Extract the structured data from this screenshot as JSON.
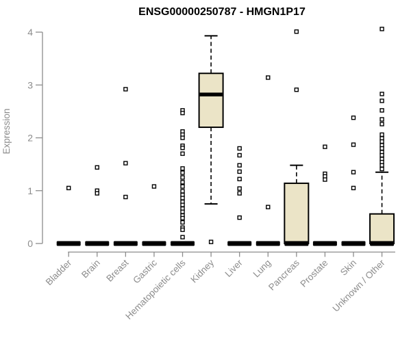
{
  "chart_data": {
    "type": "boxplot",
    "title": "ENSG00000250787 - HMGN1P17",
    "ylabel": "Expression",
    "xlabel": "",
    "ylim": [
      0,
      4
    ],
    "yticks": [
      0,
      1,
      2,
      3,
      4
    ],
    "grid": false,
    "legend": false,
    "colors": {
      "box_fill": "#ebe4c7",
      "box_border": "#000000",
      "median": "#000000",
      "whisker": "#000000",
      "outlier_fill": "#ffffff",
      "axis": "#8c8c8c",
      "label": "#8c8c8c",
      "title": "#000000",
      "background": "#ffffff"
    },
    "categories": [
      "Bladder",
      "Brain",
      "Breast",
      "Gastric",
      "Hematopoietic cells",
      "Kidney",
      "Liver",
      "Lung",
      "Pancreas",
      "Prostate",
      "Skin",
      "Unknown / Other"
    ],
    "series": [
      {
        "category": "Bladder",
        "low": 0,
        "q1": 0,
        "median": 0,
        "q3": 0,
        "high": 0,
        "outliers": [
          1.05
        ]
      },
      {
        "category": "Brain",
        "low": 0,
        "q1": 0,
        "median": 0,
        "q3": 0,
        "high": 0,
        "outliers": [
          1.44,
          1.0,
          0.95
        ]
      },
      {
        "category": "Breast",
        "low": 0,
        "q1": 0,
        "median": 0,
        "q3": 0,
        "high": 0,
        "outliers": [
          2.92,
          1.52,
          0.88
        ]
      },
      {
        "category": "Gastric",
        "low": 0,
        "q1": 0,
        "median": 0,
        "q3": 0,
        "high": 0,
        "outliers": [
          1.08
        ]
      },
      {
        "category": "Hematopoietic cells",
        "low": 0,
        "q1": 0,
        "median": 0,
        "q3": 0,
        "high": 0,
        "outliers": [
          2.52,
          2.47,
          2.12,
          2.06,
          2.0,
          1.85,
          1.81,
          1.7,
          1.42,
          1.34,
          1.25,
          1.16,
          1.08,
          0.99,
          0.92,
          0.86,
          0.79,
          0.73,
          0.66,
          0.6,
          0.53,
          0.48,
          0.4,
          0.3,
          0.26,
          0.12
        ]
      },
      {
        "category": "Kidney",
        "low": 0.75,
        "q1": 2.2,
        "median": 2.82,
        "q3": 3.22,
        "high": 3.93,
        "outliers": [
          0.03
        ]
      },
      {
        "category": "Liver",
        "low": 0,
        "q1": 0,
        "median": 0,
        "q3": 0,
        "high": 0,
        "outliers": [
          1.8,
          1.67,
          1.48,
          1.36,
          1.22,
          1.04,
          0.95,
          0.49
        ]
      },
      {
        "category": "Lung",
        "low": 0,
        "q1": 0,
        "median": 0,
        "q3": 0,
        "high": 0,
        "outliers": [
          3.14,
          0.69
        ]
      },
      {
        "category": "Pancreas",
        "low": 0,
        "q1": 0,
        "median": 0,
        "q3": 1.14,
        "high": 1.48,
        "outliers": [
          4.01,
          2.91
        ]
      },
      {
        "category": "Prostate",
        "low": 0,
        "q1": 0,
        "median": 0,
        "q3": 0,
        "high": 0,
        "outliers": [
          1.83,
          1.32,
          1.27,
          1.21
        ]
      },
      {
        "category": "Skin",
        "low": 0,
        "q1": 0,
        "median": 0,
        "q3": 0,
        "high": 0,
        "outliers": [
          2.38,
          1.87,
          1.35,
          1.05
        ]
      },
      {
        "category": "Unknown / Other",
        "low": 0,
        "q1": 0,
        "median": 0,
        "q3": 0.56,
        "high": 1.35,
        "outliers": [
          4.06,
          2.83,
          2.7,
          2.52,
          2.35,
          2.26,
          2.06,
          1.99,
          1.93,
          1.86,
          1.8,
          1.73,
          1.67,
          1.6,
          1.54,
          1.48,
          1.41
        ]
      }
    ]
  }
}
